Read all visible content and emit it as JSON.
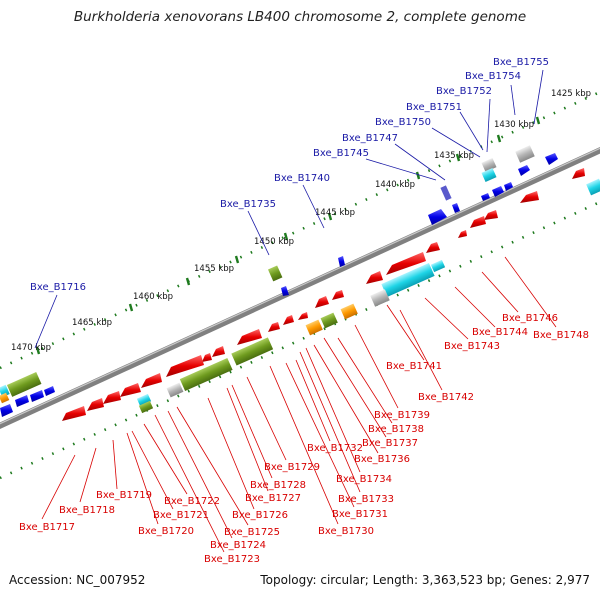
{
  "title": "Burkholderia xenovorans LB400 chromosome 2, complete genome",
  "footer": {
    "accession": "Accession: NC_007952",
    "stats": "Topology: circular; Length: 3,363,523 bp; Genes: 2,977"
  },
  "ticks": [
    "1425 kbp",
    "1430 kbp",
    "1435 kbp",
    "1440 kbp",
    "1445 kbp",
    "1450 kbp",
    "1455 kbp",
    "1460 kbp",
    "1465 kbp",
    "1470 kbp"
  ],
  "genes_top": [
    "Bxe_B1755",
    "Bxe_B1754",
    "Bxe_B1752",
    "Bxe_B1751",
    "Bxe_B1750",
    "Bxe_B1747",
    "Bxe_B1745",
    "Bxe_B1740",
    "Bxe_B1735",
    "Bxe_B1716"
  ],
  "genes_bottom": [
    "Bxe_B1746",
    "Bxe_B1748",
    "Bxe_B1744",
    "Bxe_B1743",
    "Bxe_B1741",
    "Bxe_B1742",
    "Bxe_B1739",
    "Bxe_B1738",
    "Bxe_B1737",
    "Bxe_B1736",
    "Bxe_B1732",
    "Bxe_B1734",
    "Bxe_B1733",
    "Bxe_B1731",
    "Bxe_B1730",
    "Bxe_B1729",
    "Bxe_B1728",
    "Bxe_B1727",
    "Bxe_B1726",
    "Bxe_B1725",
    "Bxe_B1724",
    "Bxe_B1723",
    "Bxe_B1722",
    "Bxe_B1721",
    "Bxe_B1720",
    "Bxe_B1719",
    "Bxe_B1718",
    "Bxe_B1717"
  ],
  "colors": {
    "top_label": "#1a1aa6",
    "bottom_label": "#d80000",
    "forward_cds": "#0000e6",
    "reverse_cds": "#e60000",
    "cyan_feature": "#1ed4e6",
    "olive_feature": "#6e9a1e",
    "orange_feature": "#ff9a00",
    "gray_feature": "#b4b4b4",
    "backbone": "#808080",
    "tick_dots": "#1e7a1e"
  }
}
